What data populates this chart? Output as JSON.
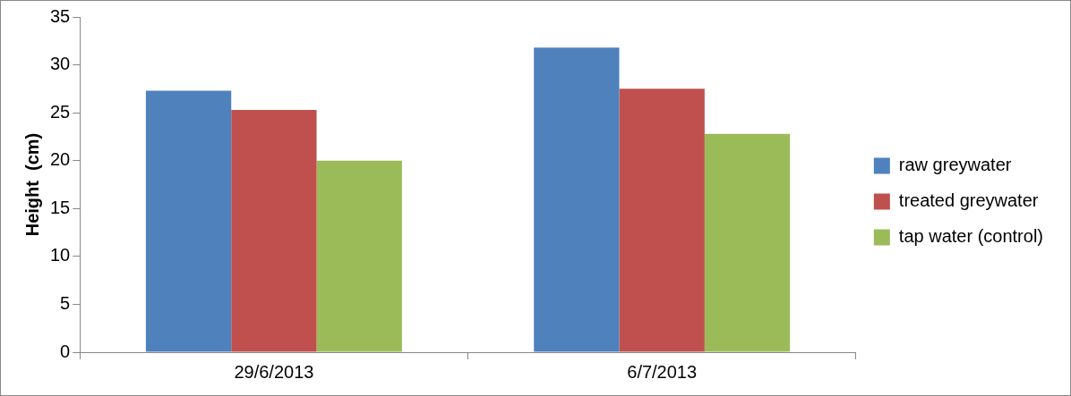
{
  "chart_data": {
    "type": "bar",
    "ylabel": "Height  (cm)",
    "categories": [
      "29/6/2013",
      "6/7/2013"
    ],
    "series": [
      {
        "name": "raw greywater",
        "color": "#4f81bd",
        "values": [
          27.3,
          31.8
        ]
      },
      {
        "name": "treated greywater",
        "color": "#c0504d",
        "values": [
          25.3,
          27.5
        ]
      },
      {
        "name": "tap water (control)",
        "color": "#9bbb59",
        "values": [
          20,
          22.8
        ]
      }
    ],
    "ylim": [
      0,
      35
    ],
    "yticks": [
      0,
      5,
      10,
      15,
      20,
      25,
      30,
      35
    ],
    "grid": false,
    "legend": "right"
  }
}
